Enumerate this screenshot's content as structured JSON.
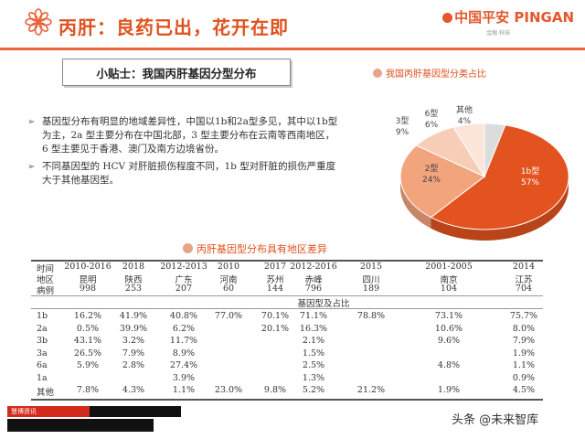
{
  "header": {
    "title": "丙肝：良药已出，花开在即",
    "brand_main": "中国平安 PINGAN",
    "brand_sub": "金融·科技"
  },
  "tips": {
    "label": "小贴士：我国丙肝基因分型分布"
  },
  "bullets": [
    "基因型分布有明显的地域差异性，中国以1b和2a型多见，其中以1b型为主，2a 型主要分布在中国北部，3 型主要分布在云南等西南地区，6 型主要见于香港、澳门及南方边境省份。",
    "不同基因型的 HCV 对肝脏损伤程度不同，1b 型对肝脏的损伤严重度大于其他基因型。"
  ],
  "pie": {
    "title": "我国丙肝基因型分类占比",
    "labels": [
      {
        "name": "1b型",
        "value": "57%"
      },
      {
        "name": "2型",
        "value": "24%"
      },
      {
        "name": "3型",
        "value": "9%"
      },
      {
        "name": "6型",
        "value": "6%"
      },
      {
        "name": "其他",
        "value": "4%"
      }
    ]
  },
  "chart_data": {
    "type": "pie",
    "title": "我国丙肝基因型分类占比",
    "categories": [
      "1b型",
      "2型",
      "3型",
      "6型",
      "其他"
    ],
    "values": [
      57,
      24,
      9,
      6,
      4
    ],
    "colors": [
      "#e2531f",
      "#f2a47d",
      "#f7cdb8",
      "#fbe4d8",
      "#dcdcdc"
    ]
  },
  "table": {
    "title": "丙肝基因型分布具有地区差异",
    "row_labels": [
      "时间",
      "地区",
      "病例"
    ],
    "columns": [
      {
        "time": "2010-2016",
        "region": "昆明",
        "cases": "998"
      },
      {
        "time": "2018",
        "region": "陕西",
        "cases": "253"
      },
      {
        "time": "2012-2013",
        "region": "广东",
        "cases": "207"
      },
      {
        "time": "2010",
        "region": "河南",
        "cases": "60"
      },
      {
        "time": "2017",
        "region": "苏州",
        "cases": "144"
      },
      {
        "time": "2012-2016",
        "region": "赤峰",
        "cases": "796"
      },
      {
        "time": "2015",
        "region": "四川",
        "cases": "189"
      },
      {
        "time": "2001-2005",
        "region": "南京",
        "cases": "104"
      },
      {
        "time": "2014",
        "region": "江苏",
        "cases": "704"
      }
    ],
    "subheader": "基因型及占比",
    "rows": [
      {
        "type": "1b",
        "values": [
          "16.2%",
          "41.9%",
          "40.8%",
          "77.0%",
          "70.1%",
          "71.1%",
          "78.8%",
          "73.1%",
          "75.7%"
        ]
      },
      {
        "type": "2a",
        "values": [
          "0.5%",
          "39.9%",
          "6.2%",
          "",
          "20.1%",
          "16.3%",
          "",
          "10.6%",
          "8.0%"
        ]
      },
      {
        "type": "3b",
        "values": [
          "43.1%",
          "3.2%",
          "11.7%",
          "",
          "",
          "2.1%",
          "",
          "9.6%",
          "7.9%"
        ]
      },
      {
        "type": "3a",
        "values": [
          "26.5%",
          "7.9%",
          "8.9%",
          "",
          "",
          "1.5%",
          "",
          "",
          "1.9%"
        ]
      },
      {
        "type": "6a",
        "values": [
          "5.9%",
          "2.8%",
          "27.4%",
          "",
          "",
          "2.5%",
          "",
          "4.8%",
          "1.1%"
        ]
      },
      {
        "type": "1a",
        "values": [
          "",
          "",
          "3.9%",
          "",
          "",
          "1.3%",
          "",
          "",
          "0.9%"
        ]
      },
      {
        "type": "其他",
        "values": [
          "7.8%",
          "4.3%",
          "1.1%",
          "23.0%",
          "9.8%",
          "5.2%",
          "21.2%",
          "1.9%",
          "4.5%"
        ]
      }
    ]
  },
  "footer": {
    "red_label": "慧博资讯",
    "watermark": "头条 @未来智库"
  }
}
